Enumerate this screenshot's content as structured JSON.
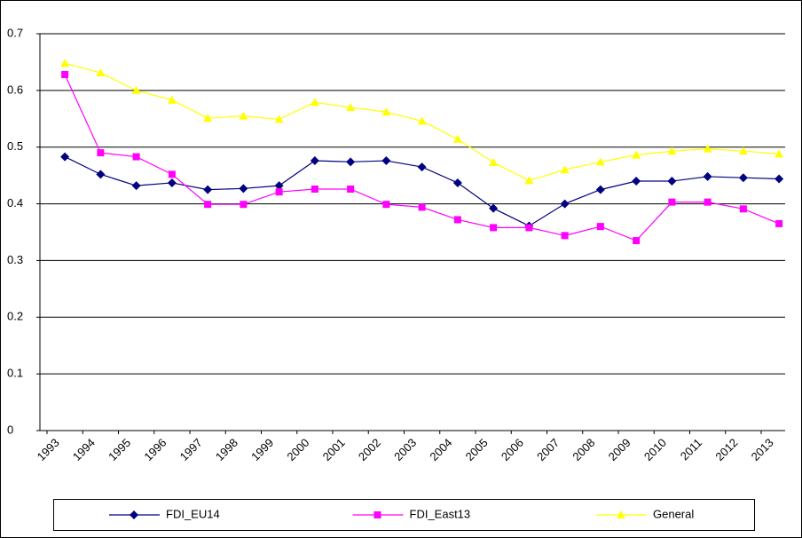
{
  "chart_data": {
    "type": "line",
    "categories": [
      "1993",
      "1994",
      "1995",
      "1996",
      "1997",
      "1998",
      "1999",
      "2000",
      "2001",
      "2002",
      "2003",
      "2004",
      "2005",
      "2006",
      "2007",
      "2008",
      "2009",
      "2010",
      "2011",
      "2012",
      "2013"
    ],
    "series": [
      {
        "name": "FDI_EU14",
        "color": "#000080",
        "marker": "diamond",
        "values": [
          0.483,
          0.452,
          0.432,
          0.437,
          0.425,
          0.427,
          0.432,
          0.476,
          0.474,
          0.476,
          0.465,
          0.437,
          0.392,
          0.361,
          0.4,
          0.425,
          0.44,
          0.44,
          0.448,
          0.446,
          0.444
        ]
      },
      {
        "name": "FDI_East13",
        "color": "#ff00ff",
        "marker": "square",
        "values": [
          0.628,
          0.49,
          0.483,
          0.452,
          0.399,
          0.399,
          0.421,
          0.426,
          0.426,
          0.399,
          0.394,
          0.372,
          0.358,
          0.358,
          0.344,
          0.36,
          0.335,
          0.403,
          0.403,
          0.391,
          0.365
        ]
      },
      {
        "name": "General",
        "color": "#ffff00",
        "marker": "triangle",
        "values": [
          0.648,
          0.631,
          0.6,
          0.583,
          0.551,
          0.555,
          0.549,
          0.579,
          0.57,
          0.562,
          0.546,
          0.514,
          0.473,
          0.441,
          0.46,
          0.474,
          0.486,
          0.493,
          0.497,
          0.493,
          0.488
        ]
      }
    ],
    "ylim": [
      0,
      0.7
    ],
    "yticks": [
      0,
      0.1,
      0.2,
      0.3,
      0.4,
      0.5,
      0.6,
      0.7
    ],
    "grid": true,
    "legend": "bottom"
  }
}
